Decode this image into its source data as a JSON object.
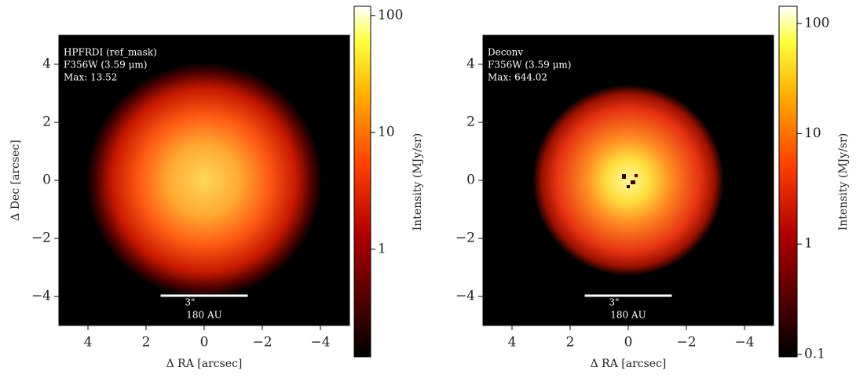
{
  "chart_data": [
    {
      "type": "image",
      "annotations": [
        "HPFRDI (ref_mask)",
        "F356W (3.59 μm)",
        "Max: 13.52"
      ],
      "xlabel": "Δ RA [arcsec]",
      "ylabel": "Δ Dec [arcsec]",
      "xlim": [
        5,
        -5
      ],
      "ylim": [
        -5,
        5
      ],
      "xticks": [
        4,
        2,
        0,
        {
          "value": -2,
          "label": "−2"
        },
        {
          "value": -4,
          "label": "−4"
        }
      ],
      "yticks": [
        {
          "value": -4,
          "label": "−4"
        },
        {
          "value": -2,
          "label": "−2"
        },
        0,
        2,
        4
      ],
      "scalebar": {
        "length": 3,
        "label": "3\"",
        "sublabel": "180 AU"
      },
      "colorbar": {
        "label": "Intensity (MJy/sr)",
        "scale": "log",
        "lim": [
          0.12,
          120
        ],
        "ticks": [
          1,
          10,
          100
        ]
      }
    },
    {
      "type": "image",
      "annotations": [
        "Deconv",
        "F356W (3.59 μm)",
        "Max: 644.02"
      ],
      "xlabel": "Δ RA [arcsec]",
      "ylabel": null,
      "xlim": [
        5,
        -5
      ],
      "ylim": [
        -5,
        5
      ],
      "xticks": [
        4,
        2,
        0,
        {
          "value": -2,
          "label": "−2"
        },
        {
          "value": -4,
          "label": "−4"
        }
      ],
      "yticks": [
        {
          "value": -4,
          "label": "−4"
        },
        {
          "value": -2,
          "label": "−2"
        },
        0,
        2,
        4
      ],
      "scalebar": {
        "length": 3,
        "label": "3\"",
        "sublabel": "180 AU"
      },
      "colorbar": {
        "label": "Intensity (MJy/sr)",
        "scale": "log",
        "lim": [
          0.095,
          143
        ],
        "ticks": [
          0.1,
          1,
          10,
          100
        ]
      }
    }
  ]
}
